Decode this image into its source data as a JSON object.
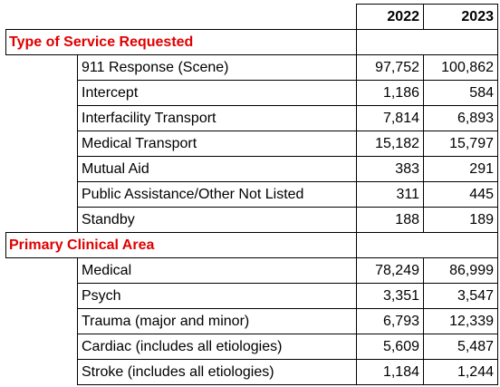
{
  "header": {
    "year_2022": "2022",
    "year_2023": "2023"
  },
  "sections": [
    {
      "title": "Type of Service Requested",
      "rows": [
        {
          "label": "911 Response (Scene)",
          "v2022": "97,752",
          "v2023": "100,862"
        },
        {
          "label": "Intercept",
          "v2022": "1,186",
          "v2023": "584"
        },
        {
          "label": "Interfacility Transport",
          "v2022": "7,814",
          "v2023": "6,893"
        },
        {
          "label": "Medical Transport",
          "v2022": "15,182",
          "v2023": "15,797"
        },
        {
          "label": "Mutual Aid",
          "v2022": "383",
          "v2023": "291"
        },
        {
          "label": "Public Assistance/Other Not Listed",
          "v2022": "311",
          "v2023": "445"
        },
        {
          "label": "Standby",
          "v2022": "188",
          "v2023": "189"
        }
      ]
    },
    {
      "title": "Primary Clinical Area",
      "rows": [
        {
          "label": "Medical",
          "v2022": "78,249",
          "v2023": "86,999"
        },
        {
          "label": "Psych",
          "v2022": "3,351",
          "v2023": "3,547"
        },
        {
          "label": "Trauma (major and minor)",
          "v2022": "6,793",
          "v2023": "12,339"
        },
        {
          "label": "Cardiac (includes all etiologies)",
          "v2022": "5,609",
          "v2023": "5,487"
        },
        {
          "label": "Stroke (includes all etiologies)",
          "v2022": "1,184",
          "v2023": "1,244"
        }
      ]
    }
  ]
}
